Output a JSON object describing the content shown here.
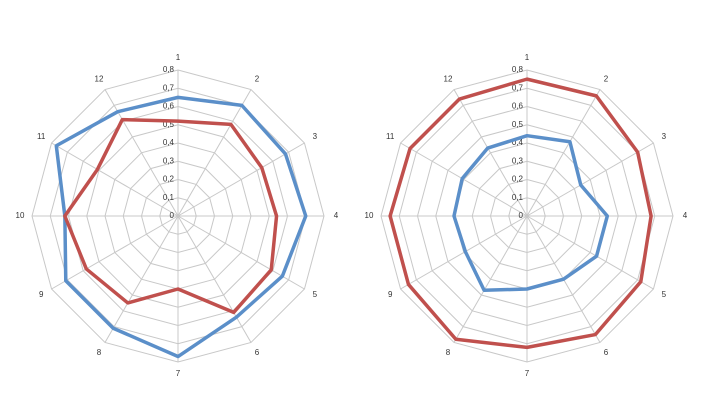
{
  "chart_data": [
    {
      "type": "radar",
      "categories": [
        "1",
        "2",
        "3",
        "4",
        "5",
        "6",
        "7",
        "8",
        "9",
        "10",
        "11",
        "12"
      ],
      "ylim": [
        0,
        0.8
      ],
      "yticks": [
        0,
        {
          "value": 0.1,
          "label": "0,1"
        },
        {
          "value": 0.2,
          "label": "0,2"
        },
        {
          "value": 0.3,
          "label": "0,3"
        },
        {
          "value": 0.4,
          "label": "0,4"
        },
        {
          "value": 0.5,
          "label": "0,5"
        },
        {
          "value": 0.6,
          "label": "0,6"
        },
        {
          "value": 0.7,
          "label": "0,7"
        },
        {
          "value": 0.8,
          "label": "0,8"
        }
      ],
      "grid": true,
      "series": [
        {
          "color": "#5b8fc9",
          "values": [
            0.65,
            0.7,
            0.68,
            0.7,
            0.66,
            0.64,
            0.77,
            0.71,
            0.71,
            0.62,
            0.77,
            0.66
          ]
        },
        {
          "color": "#c0504d",
          "values": [
            0.52,
            0.58,
            0.53,
            0.54,
            0.59,
            0.61,
            0.4,
            0.55,
            0.58,
            0.62,
            0.51,
            0.61
          ]
        }
      ]
    },
    {
      "type": "radar",
      "categories": [
        "1",
        "2",
        "3",
        "4",
        "5",
        "6",
        "7",
        "8",
        "9",
        "10",
        "11",
        "12"
      ],
      "ylim": [
        0,
        0.8
      ],
      "yticks": [
        0,
        {
          "value": 0.1,
          "label": "0,1"
        },
        {
          "value": 0.2,
          "label": "0,2"
        },
        {
          "value": 0.3,
          "label": "0,3"
        },
        {
          "value": 0.4,
          "label": "0,4"
        },
        {
          "value": 0.5,
          "label": "0,5"
        },
        {
          "value": 0.6,
          "label": "0,6"
        },
        {
          "value": 0.7,
          "label": "0,7"
        },
        {
          "value": 0.8,
          "label": "0,8"
        }
      ],
      "grid": true,
      "series": [
        {
          "color": "#5b8fc9",
          "values": [
            0.44,
            0.47,
            0.34,
            0.44,
            0.44,
            0.4,
            0.4,
            0.47,
            0.39,
            0.4,
            0.41,
            0.43
          ]
        },
        {
          "color": "#c0504d",
          "values": [
            0.75,
            0.76,
            0.7,
            0.68,
            0.72,
            0.75,
            0.72,
            0.78,
            0.75,
            0.75,
            0.74,
            0.74
          ]
        }
      ]
    }
  ]
}
